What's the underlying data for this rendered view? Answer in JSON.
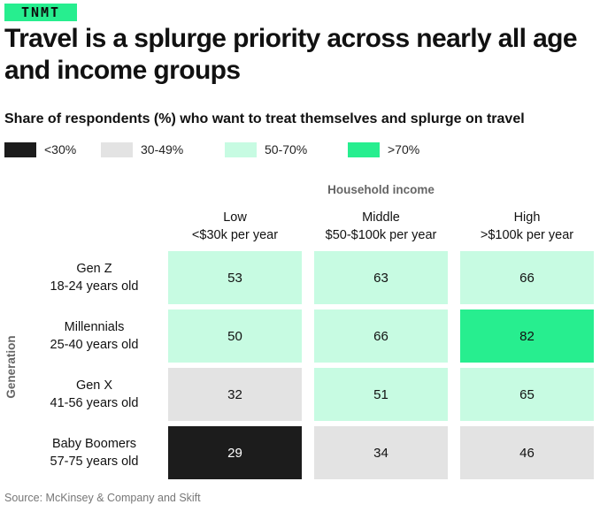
{
  "brand": {
    "logo_text": "TNMT",
    "logo_color": "#27ee8f"
  },
  "title": "Travel is a splurge priority across nearly all age and income groups",
  "subtitle": "Share of respondents (%) who want to treat themselves and splurge on travel",
  "legend": [
    {
      "label": "<30%",
      "color": "#1c1c1c"
    },
    {
      "label": "30-49%",
      "color": "#e3e3e3"
    },
    {
      "label": "50-70%",
      "color": "#c7fbe2"
    },
    {
      "label": ">70%",
      "color": "#27ee8f"
    }
  ],
  "source": "Source: McKinsey & Company and Skift",
  "chart_data": {
    "type": "heatmap",
    "title": "Travel is a splurge priority across nearly all age and income groups",
    "subtitle": "Share of respondents (%) who want to treat themselves and splurge on travel",
    "x_group_label": "Household income",
    "y_group_label": "Generation",
    "columns": [
      {
        "name": "Low",
        "range": "<$30k per year"
      },
      {
        "name": "Middle",
        "range": "$50-$100k per year"
      },
      {
        "name": "High",
        "range": ">$100k per year"
      }
    ],
    "rows": [
      {
        "name": "Gen Z",
        "range": "18-24 years old"
      },
      {
        "name": "Millennials",
        "range": "25-40 years old"
      },
      {
        "name": "Gen X",
        "range": "41-56 years old"
      },
      {
        "name": "Baby Boomers",
        "range": "57-75 years old"
      }
    ],
    "values": [
      [
        53,
        63,
        66
      ],
      [
        50,
        66,
        82
      ],
      [
        32,
        51,
        65
      ],
      [
        29,
        34,
        46
      ]
    ],
    "color_scale": [
      {
        "label": "<30%",
        "max": 29.999,
        "color": "#1c1c1c",
        "text_color": "#ffffff"
      },
      {
        "label": "30-49%",
        "max": 49.999,
        "color": "#e3e3e3",
        "text_color": "#111111"
      },
      {
        "label": "50-70%",
        "max": 70,
        "color": "#c7fbe2",
        "text_color": "#111111"
      },
      {
        "label": ">70%",
        "max": 1000,
        "color": "#27ee8f",
        "text_color": "#111111"
      }
    ]
  }
}
